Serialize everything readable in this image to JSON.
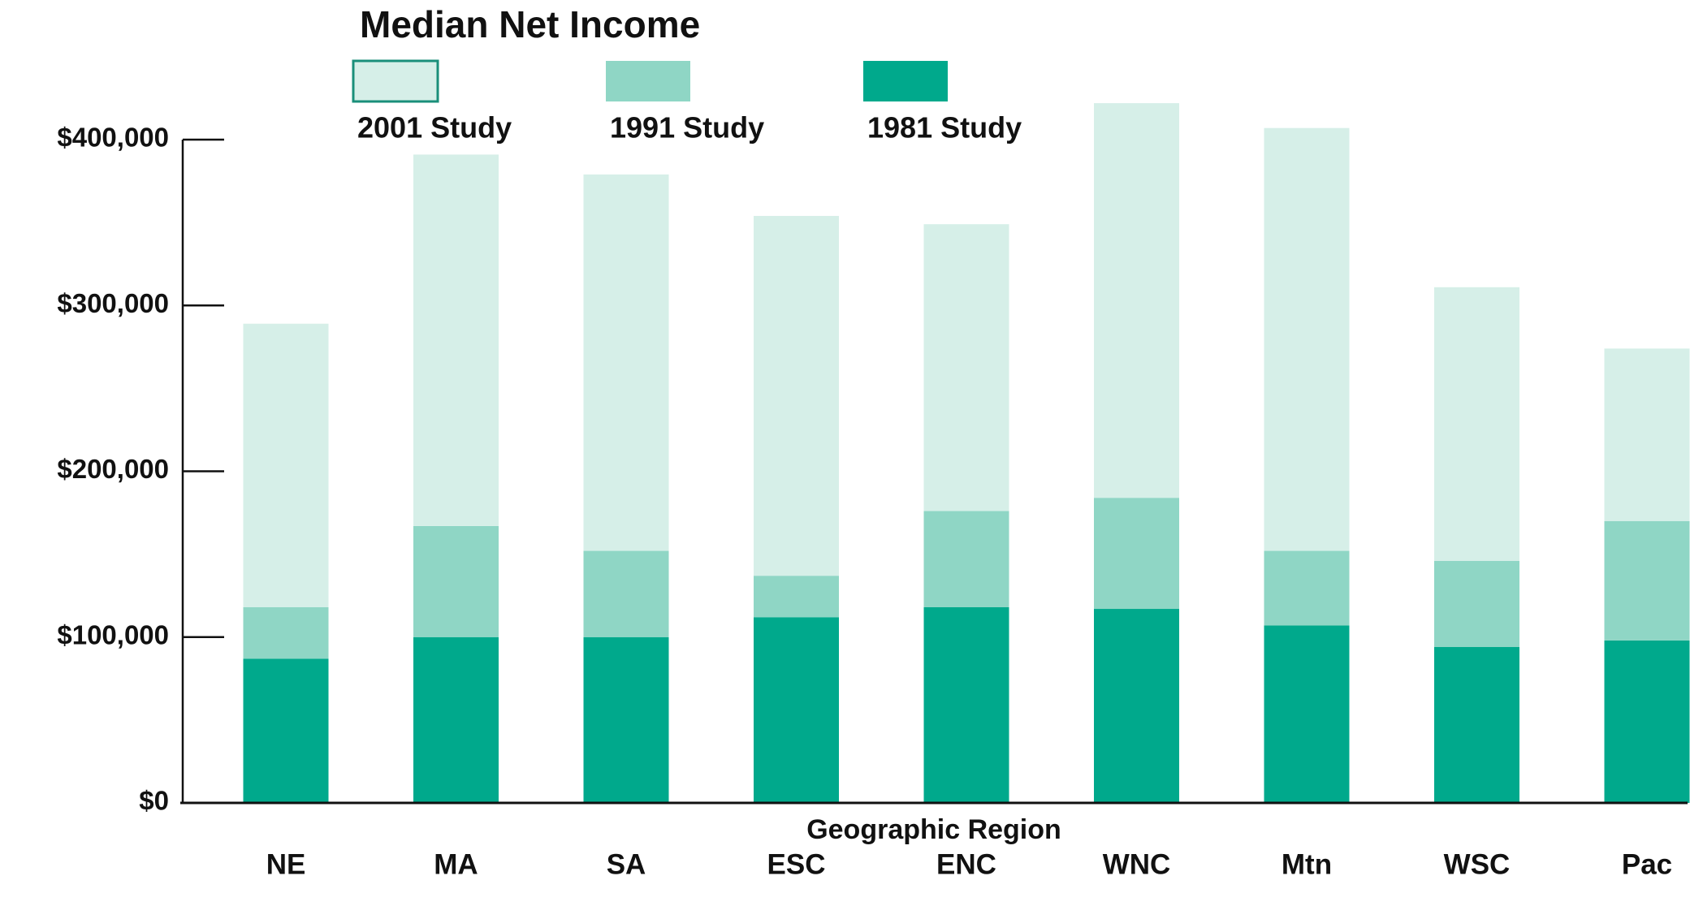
{
  "chart_data": {
    "type": "stacked_bar",
    "title": "Median Net Income",
    "x_label": "Geographic Region",
    "categories": [
      "NE",
      "MA",
      "SA",
      "ESC",
      "ENC",
      "WNC",
      "Mtn",
      "WSC",
      "Pac"
    ],
    "series": [
      {
        "name": "2001 Study",
        "color": "#d6efe8",
        "values": [
          171000,
          224000,
          227000,
          217000,
          173000,
          238000,
          255000,
          165000,
          104000
        ]
      },
      {
        "name": "1991 Study",
        "color": "#8fd6c5",
        "values": [
          31000,
          67000,
          52000,
          25000,
          58000,
          67000,
          45000,
          52000,
          72000
        ]
      },
      {
        "name": "1981 Study",
        "color": "#00a98c",
        "values": [
          87000,
          100000,
          100000,
          112000,
          118000,
          117000,
          107000,
          94000,
          98000
        ]
      }
    ],
    "ylim": [
      0,
      400000
    ],
    "yticks": [
      {
        "value": 0,
        "label": "$0"
      },
      {
        "value": 100000,
        "label": "$100,000"
      },
      {
        "value": 200000,
        "label": "$200,000"
      },
      {
        "value": 300000,
        "label": "$300,000"
      },
      {
        "value": 400000,
        "label": "$400,000"
      }
    ]
  }
}
